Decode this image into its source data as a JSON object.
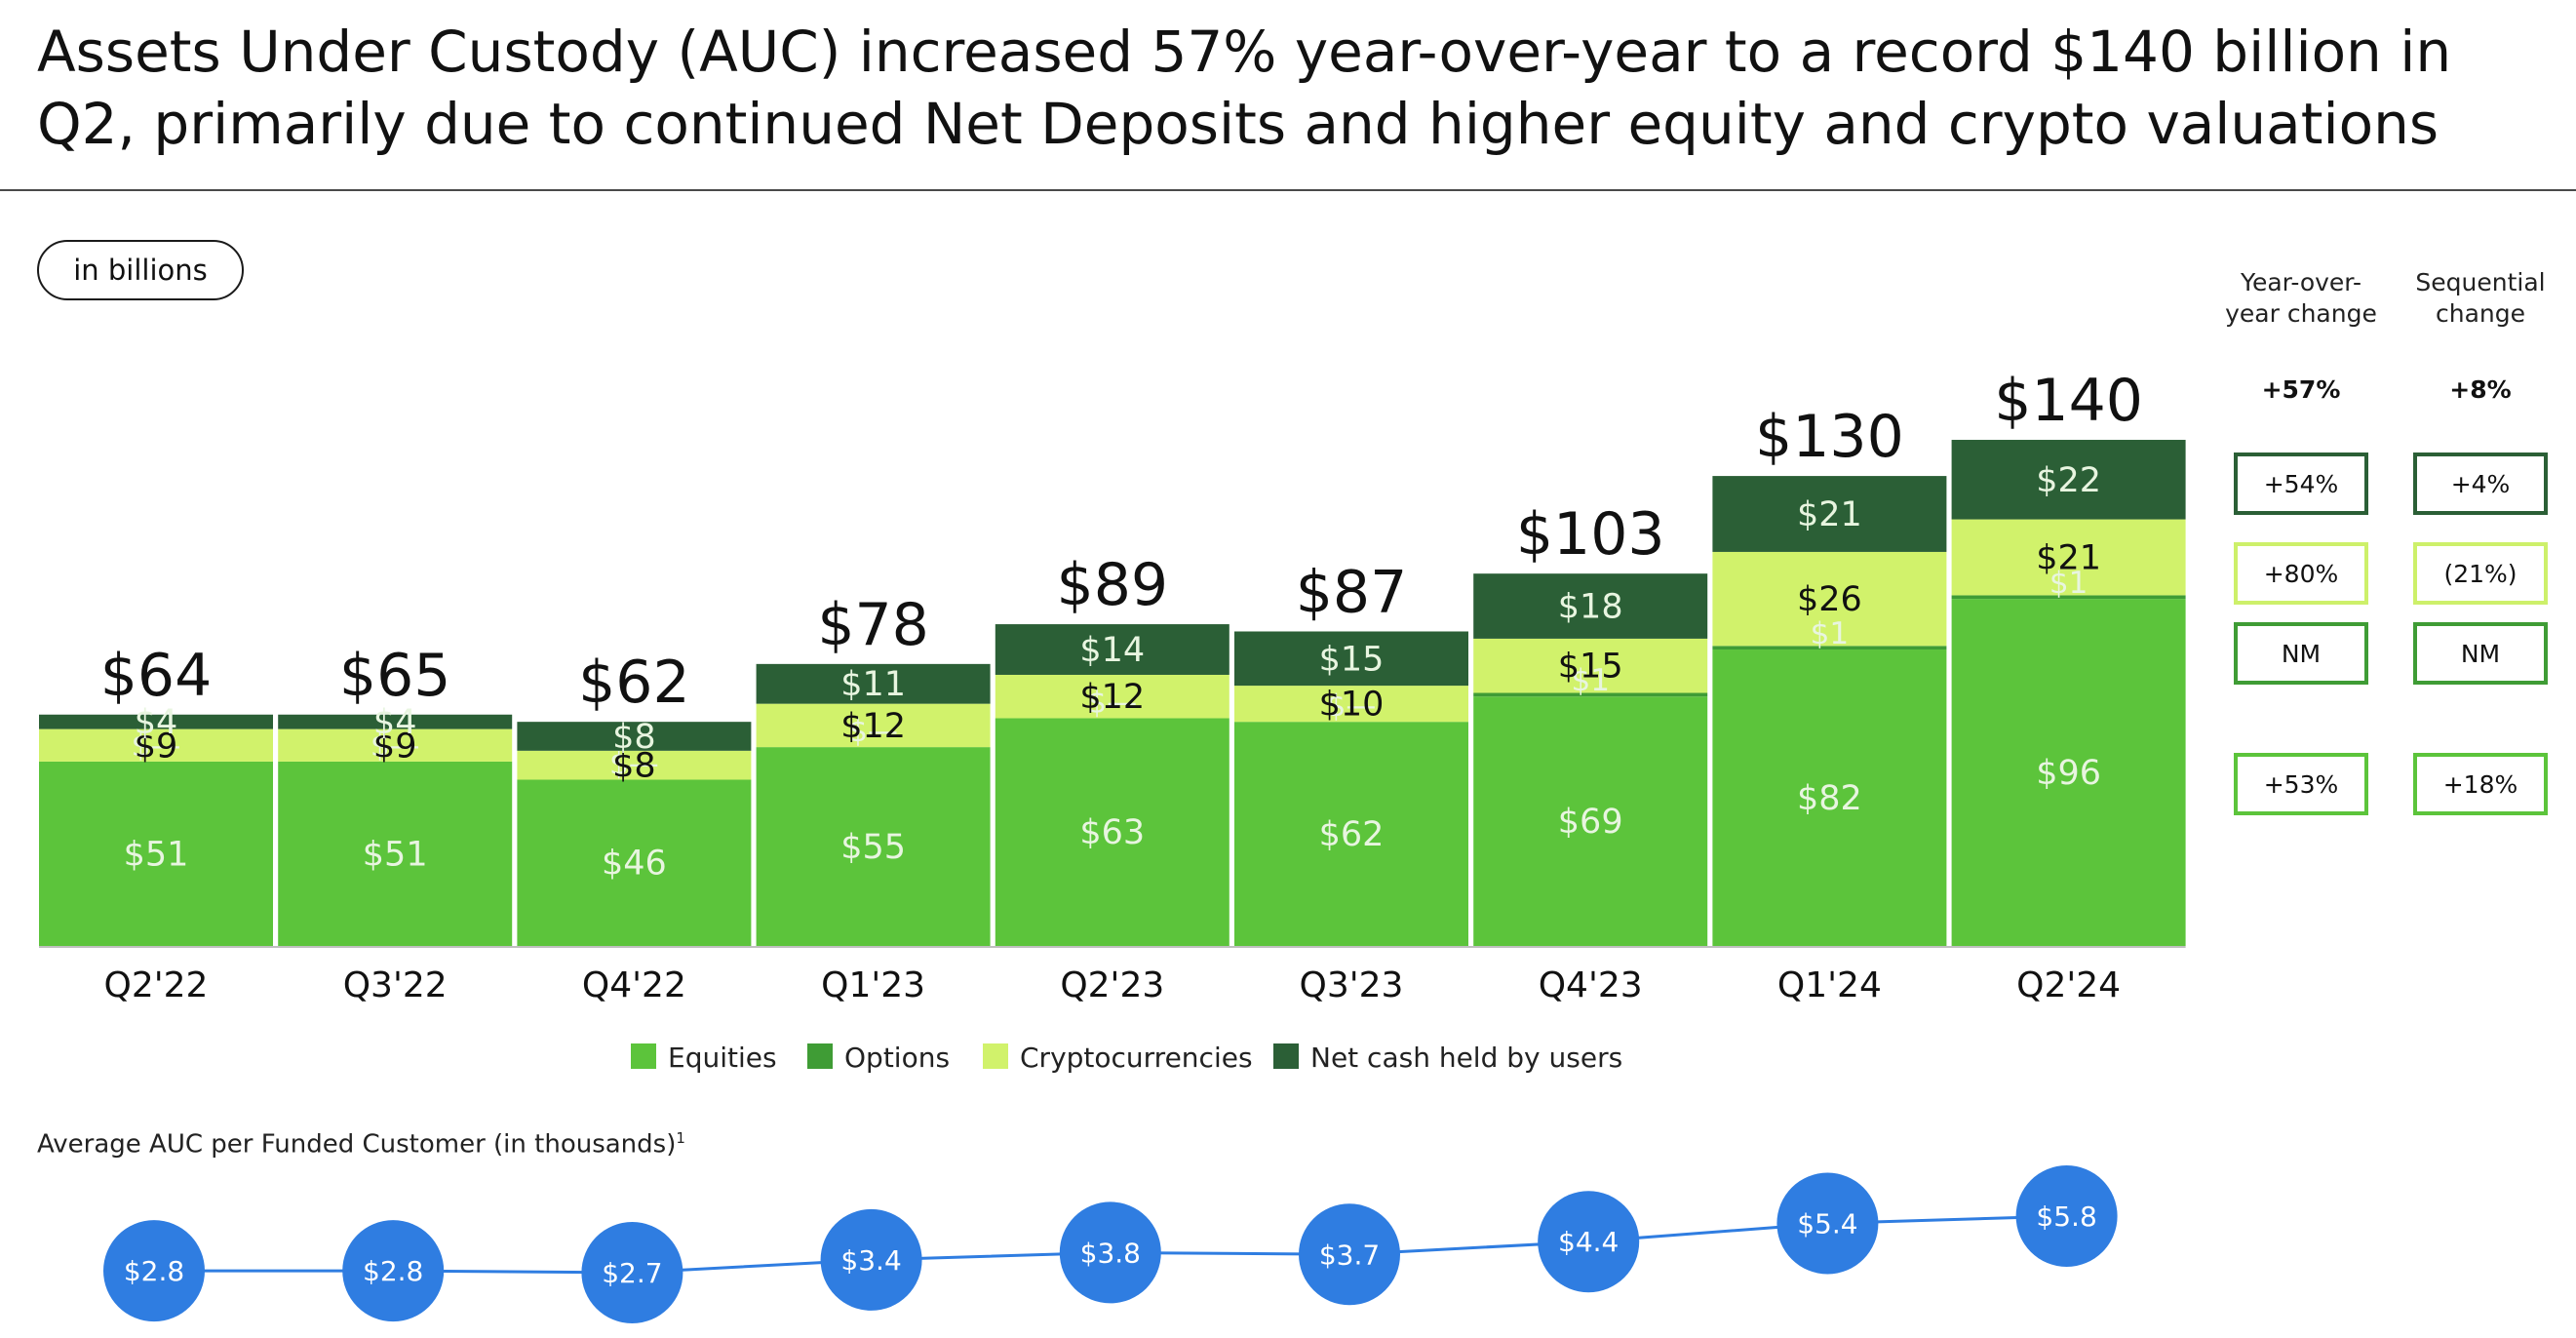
{
  "title_lines": [
    "Assets Under Custody (AUC) increased 57% year-over-year to a record $140 billion in",
    "Q2, primarily due to continued Net Deposits and higher equity and crypto valuations"
  ],
  "units_label": "in billions",
  "colors": {
    "equities": "#5cc43b",
    "options": "#3f9c35",
    "crypto": "#d1f26b",
    "cash": "#2b5f36",
    "line": "#2f7de1",
    "bubble": "#2f7de1"
  },
  "change_table": {
    "headers": {
      "yoy": "Year-over-year change",
      "seq": "Sequential change"
    },
    "total": {
      "yoy": "+57%",
      "seq": "+8%"
    },
    "rows": [
      {
        "series": "cash",
        "yoy": "+54%",
        "seq": "+4%"
      },
      {
        "series": "crypto",
        "yoy": "+80%",
        "seq": "(21%)"
      },
      {
        "series": "options",
        "yoy": "NM",
        "seq": "NM"
      },
      {
        "series": "equities",
        "yoy": "+53%",
        "seq": "+18%"
      }
    ]
  },
  "chart_data": [
    {
      "type": "bar",
      "stacked": true,
      "categories": [
        "Q2'22",
        "Q3'22",
        "Q4'22",
        "Q1'23",
        "Q2'23",
        "Q3'23",
        "Q4'23",
        "Q1'24",
        "Q2'24"
      ],
      "series": [
        {
          "name": "Equities",
          "key": "equities",
          "values": [
            51,
            51,
            46,
            55,
            63,
            62,
            69,
            82,
            96
          ]
        },
        {
          "name": "Options",
          "key": "options",
          "values": [
            0,
            0,
            0,
            0,
            0,
            0,
            1,
            1,
            1
          ]
        },
        {
          "name": "Cryptocurrencies",
          "key": "crypto",
          "values": [
            9,
            9,
            8,
            12,
            12,
            10,
            15,
            26,
            21
          ]
        },
        {
          "name": "Net cash held by users",
          "key": "cash",
          "values": [
            4,
            4,
            8,
            11,
            14,
            15,
            18,
            21,
            22
          ]
        }
      ],
      "segment_labels": {
        "equities": [
          "$51",
          "$51",
          "$46",
          "$55",
          "$63",
          "$62",
          "$69",
          "$82",
          "$96"
        ],
        "options": [
          "$—",
          "$—",
          "$—",
          "$—",
          "$—",
          "$—",
          "$1",
          "$1",
          "$1"
        ],
        "crypto": [
          "$9",
          "$9",
          "$8",
          "$12",
          "$12",
          "$10",
          "$15",
          "$26",
          "$21"
        ],
        "cash": [
          "$4",
          "$4",
          "$8",
          "$11",
          "$14",
          "$15",
          "$18",
          "$21",
          "$22"
        ]
      },
      "totals": [
        64,
        65,
        62,
        78,
        89,
        87,
        103,
        130,
        140
      ],
      "total_labels": [
        "$64",
        "$65",
        "$62",
        "$78",
        "$89",
        "$87",
        "$103",
        "$130",
        "$140"
      ],
      "ylim": [
        0,
        140
      ],
      "legend_position": "bottom",
      "grid": false
    },
    {
      "type": "line",
      "title": "Average AUC per Funded Customer (in thousands)",
      "title_superscript": "1",
      "categories": [
        "Q2'22",
        "Q3'22",
        "Q4'22",
        "Q1'23",
        "Q2'23",
        "Q3'23",
        "Q4'23",
        "Q1'24",
        "Q2'24"
      ],
      "values": [
        2.8,
        2.8,
        2.7,
        3.4,
        3.8,
        3.7,
        4.4,
        5.4,
        5.8
      ],
      "labels": [
        "$2.8",
        "$2.8",
        "$2.7",
        "$3.4",
        "$3.8",
        "$3.7",
        "$4.4",
        "$5.4",
        "$5.8"
      ],
      "ylim": [
        2.7,
        5.8
      ],
      "grid": false
    }
  ]
}
